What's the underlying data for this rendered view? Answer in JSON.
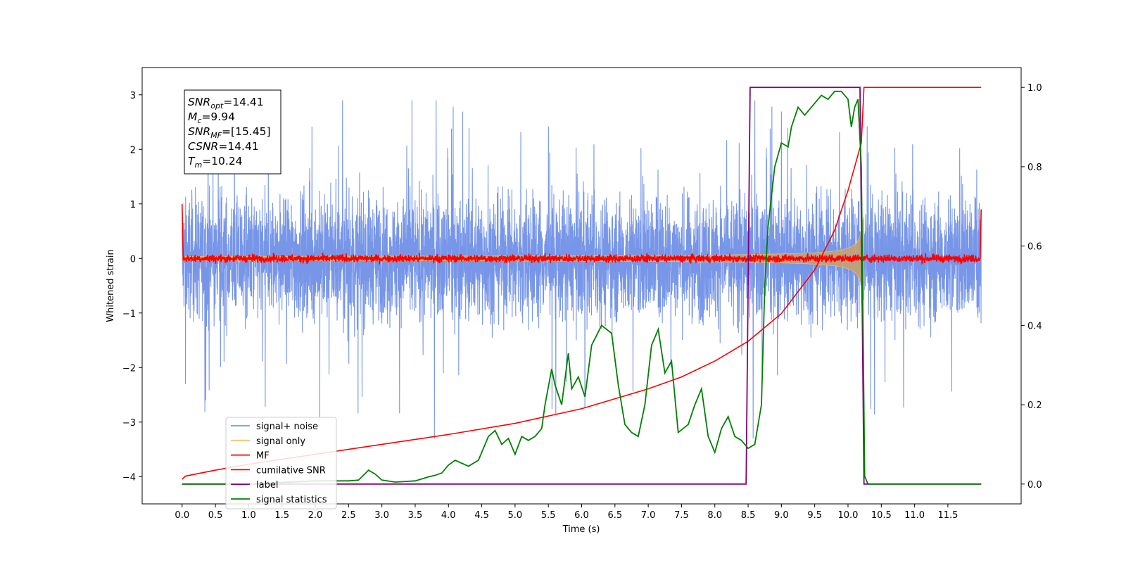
{
  "chart_data": {
    "type": "line",
    "xlabel": "Time (s)",
    "ylabel": "Whitened strain",
    "xlim": [
      -0.6,
      12.6
    ],
    "ylim_left": [
      -4.5,
      3.5
    ],
    "ylim_right": [
      -0.05,
      1.05
    ],
    "x_ticks": [
      "0.0",
      "0.5",
      "1.0",
      "1.5",
      "2.0",
      "2.5",
      "3.0",
      "3.5",
      "4.0",
      "4.5",
      "5.0",
      "5.5",
      "6.0",
      "6.5",
      "7.0",
      "7.5",
      "8.0",
      "8.5",
      "9.0",
      "9.5",
      "10.0",
      "10.5",
      "11.0",
      "11.5"
    ],
    "y_ticks_left": [
      "3",
      "2",
      "1",
      "0",
      "−1",
      "−2",
      "−3",
      "−4"
    ],
    "y_ticks_right": [
      "1.0",
      "0.8",
      "0.6",
      "0.4",
      "0.2",
      "0.0"
    ],
    "legend": {
      "placement": "lower-left",
      "entries": [
        {
          "label": "signal+ noise",
          "color": "#7796e8"
        },
        {
          "label": "signal only",
          "color": "#f5c46e"
        },
        {
          "label": "MF",
          "color": "#ff0000"
        },
        {
          "label": "cumilative SNR",
          "color": "#ff0000"
        },
        {
          "label": "label",
          "color": "#800080"
        },
        {
          "label": "signal statistics",
          "color": "#008000"
        }
      ]
    },
    "annotation_lines": [
      {
        "sym": "SNR",
        "sub": "opt",
        "value": "=14.41"
      },
      {
        "sym": "M",
        "sub": "c",
        "value": "=9.94"
      },
      {
        "sym": "SNR",
        "sub": "MF",
        "value": "=[15.45]"
      },
      {
        "sym": "CSNR",
        "sub": "",
        "value": "=14.41"
      },
      {
        "sym": "T",
        "sub": "m",
        "value": "=10.24"
      }
    ],
    "series": [
      {
        "name": "signal+ noise",
        "axis": "left",
        "color": "#7796e8",
        "x_range": [
          0.0,
          12.0
        ],
        "envelope_typical": 1.5,
        "envelope_peaks": 2.9
      },
      {
        "name": "signal only",
        "axis": "left",
        "color": "#f5c46e",
        "x_range": [
          0.0,
          10.24
        ],
        "amplitude_start": 0.02,
        "amplitude_peak": 0.85
      },
      {
        "name": "MF",
        "axis": "left",
        "color": "#ff0000",
        "x_range": [
          0.0,
          12.0
        ],
        "baseline": 0.0,
        "noise_amplitude": 0.07,
        "edge_start": 1.0,
        "edge_end": 0.9
      },
      {
        "name": "cumilative SNR",
        "axis": "right",
        "color": "#ff0000",
        "x": [
          0.0,
          0.05,
          0.5,
          1.0,
          2.0,
          3.0,
          4.0,
          5.0,
          6.0,
          7.0,
          7.5,
          8.0,
          8.5,
          9.0,
          9.5,
          9.8,
          10.0,
          10.1,
          10.2,
          10.24,
          10.3,
          12.0
        ],
        "y": [
          0.012,
          0.02,
          0.035,
          0.05,
          0.075,
          0.1,
          0.125,
          0.153,
          0.19,
          0.24,
          0.27,
          0.31,
          0.36,
          0.43,
          0.54,
          0.64,
          0.74,
          0.8,
          0.86,
          1.0,
          1.0,
          1.0
        ]
      },
      {
        "name": "label",
        "axis": "right",
        "color": "#800080",
        "x": [
          0.0,
          8.47,
          8.53,
          10.18,
          10.24,
          12.0
        ],
        "y": [
          0.0,
          0.0,
          1.0,
          1.0,
          0.0,
          0.0
        ]
      },
      {
        "name": "signal statistics",
        "axis": "right",
        "color": "#008000",
        "x": [
          0.0,
          1.0,
          2.0,
          2.5,
          2.65,
          2.8,
          2.9,
          3.0,
          3.2,
          3.5,
          3.7,
          3.8,
          3.9,
          4.0,
          4.1,
          4.3,
          4.45,
          4.6,
          4.7,
          4.8,
          4.9,
          5.0,
          5.1,
          5.2,
          5.3,
          5.4,
          5.45,
          5.55,
          5.6,
          5.7,
          5.8,
          5.85,
          5.95,
          6.05,
          6.15,
          6.3,
          6.45,
          6.55,
          6.65,
          6.75,
          6.85,
          6.95,
          7.05,
          7.15,
          7.25,
          7.35,
          7.45,
          7.6,
          7.7,
          7.8,
          7.9,
          8.0,
          8.1,
          8.2,
          8.3,
          8.4,
          8.5,
          8.6,
          8.7,
          8.75,
          8.8,
          8.9,
          9.0,
          9.1,
          9.15,
          9.25,
          9.35,
          9.5,
          9.6,
          9.7,
          9.8,
          9.9,
          10.0,
          10.05,
          10.1,
          10.15,
          10.2,
          10.25,
          10.3,
          10.4,
          12.0
        ],
        "y": [
          0.0,
          0.0,
          0.008,
          0.008,
          0.01,
          0.035,
          0.025,
          0.01,
          0.005,
          0.008,
          0.018,
          0.022,
          0.028,
          0.048,
          0.06,
          0.045,
          0.06,
          0.12,
          0.135,
          0.1,
          0.115,
          0.075,
          0.12,
          0.11,
          0.12,
          0.14,
          0.2,
          0.29,
          0.25,
          0.2,
          0.33,
          0.24,
          0.27,
          0.22,
          0.35,
          0.4,
          0.38,
          0.25,
          0.15,
          0.13,
          0.12,
          0.2,
          0.35,
          0.39,
          0.28,
          0.31,
          0.13,
          0.15,
          0.2,
          0.24,
          0.12,
          0.08,
          0.14,
          0.17,
          0.12,
          0.11,
          0.09,
          0.1,
          0.2,
          0.5,
          0.65,
          0.8,
          0.86,
          0.85,
          0.9,
          0.95,
          0.93,
          0.96,
          0.98,
          0.97,
          0.99,
          0.99,
          0.97,
          0.9,
          0.95,
          0.97,
          0.8,
          0.02,
          0.0,
          0.0,
          0.0
        ]
      }
    ]
  }
}
